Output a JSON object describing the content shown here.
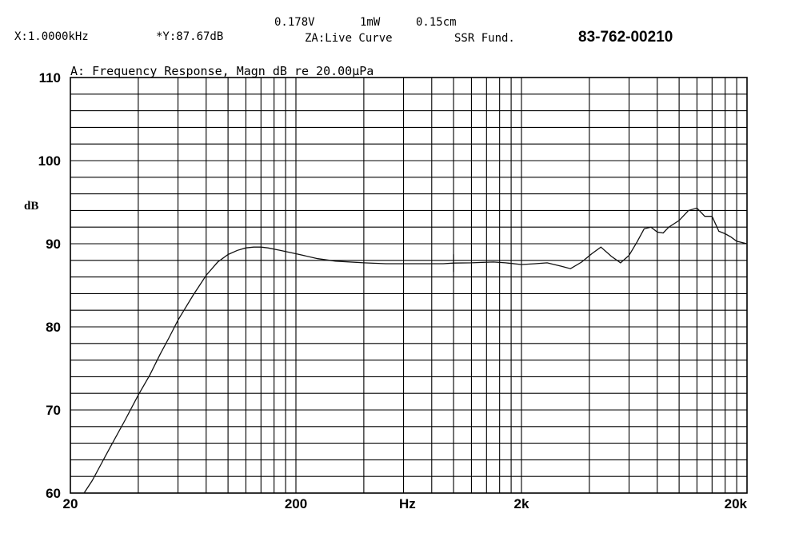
{
  "header": {
    "cursor_x": "X:1.0000kHz",
    "cursor_y": "*Y:87.67dB",
    "voltage": "0.178V",
    "power": "1mW",
    "distance": "0.15cm",
    "za_mode": "ZA:Live Curve",
    "ssr": "SSR Fund.",
    "part_number": "83-762-00210"
  },
  "chart_data": {
    "type": "line",
    "title": "A: Frequency Response, Magn dB re 20.00µPa",
    "xlabel": "Hz",
    "ylabel": "dB",
    "xscale": "log",
    "xlim": [
      20,
      20000
    ],
    "ylim": [
      60,
      110
    ],
    "grid": true,
    "x_tick_labels": [
      {
        "value": 20,
        "label": "20"
      },
      {
        "value": 200,
        "label": "200"
      },
      {
        "value": 2000,
        "label": "2k"
      },
      {
        "value": 20000,
        "label": "20k"
      }
    ],
    "y_ticks": [
      60,
      70,
      80,
      90,
      100,
      110
    ],
    "cursor": {
      "x": 1000,
      "y": 87.67
    },
    "series": [
      {
        "x": [
          23,
          25,
          30,
          35,
          40,
          45,
          50,
          55,
          60,
          70,
          80,
          90,
          100,
          110,
          120,
          130,
          140,
          150,
          170,
          200,
          250,
          300,
          400,
          500,
          600,
          700,
          800,
          900,
          1000,
          1200,
          1500,
          1700,
          2000,
          2300,
          2600,
          3000,
          3300,
          3700,
          4100,
          4500,
          5000,
          5500,
          6000,
          6500,
          7000,
          7500,
          8000,
          8500,
          9000,
          10000,
          11000,
          12000,
          13000,
          14000,
          15000,
          16000,
          17000,
          18000,
          20000
        ],
        "y": [
          60.0,
          61.5,
          65.5,
          68.8,
          71.8,
          74.2,
          76.7,
          78.8,
          80.8,
          83.8,
          86.2,
          87.8,
          88.7,
          89.2,
          89.5,
          89.6,
          89.6,
          89.5,
          89.2,
          88.8,
          88.2,
          87.9,
          87.7,
          87.6,
          87.6,
          87.6,
          87.6,
          87.6,
          87.67,
          87.7,
          87.8,
          87.7,
          87.5,
          87.6,
          87.7,
          87.3,
          87.0,
          87.8,
          88.8,
          89.6,
          88.5,
          87.7,
          88.6,
          90.2,
          91.8,
          92.0,
          91.4,
          91.3,
          92.0,
          92.8,
          94.0,
          94.3,
          93.3,
          93.3,
          91.5,
          91.2,
          90.8,
          90.3,
          90.0
        ]
      }
    ]
  }
}
